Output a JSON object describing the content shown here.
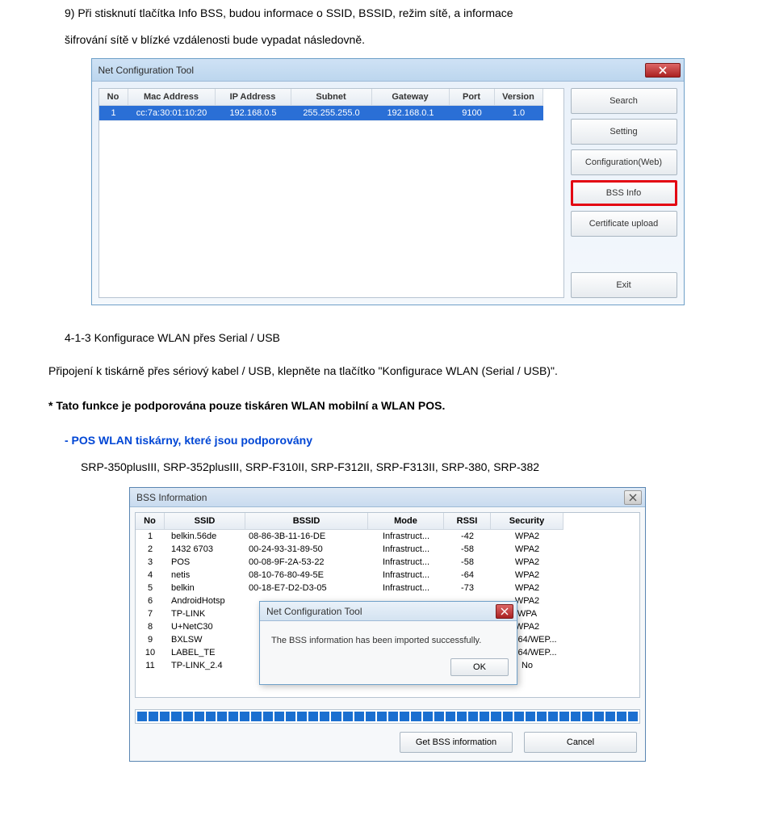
{
  "doc": {
    "step9_line1": "9) Při stisknutí tlačítka Info BSS, budou informace o SSID, BSSID, režim sítě, a informace",
    "step9_line2": "šifrování sítě v blízké vzdálenosti bude vypadat následovně.",
    "section_413": "4-1-3 Konfigurace WLAN přes Serial / USB",
    "para1": "Připojení k tiskárně přes sériový kabel / USB, klepněte na tlačítko \"Konfigurace WLAN (Serial / USB)\".",
    "para2": "* Tato funkce je podporována pouze tiskáren WLAN mobilní a WLAN POS.",
    "para3a": "- POS WLAN tiskárny, které jsou podporovány",
    "para3b": "SRP-350plusIII, SRP-352plusIII, SRP-F310II, SRP-F312II, SRP-F313II, SRP-380, SRP-382"
  },
  "win1": {
    "title": "Net Configuration Tool",
    "columns": [
      "No",
      "Mac Address",
      "IP Address",
      "Subnet",
      "Gateway",
      "Port",
      "Version"
    ],
    "row": [
      "1",
      "cc:7a:30:01:10:20",
      "192.168.0.5",
      "255.255.255.0",
      "192.168.0.1",
      "9100",
      "1.0"
    ],
    "buttons": {
      "search": "Search",
      "setting": "Setting",
      "configweb": "Configuration(Web)",
      "bssinfo": "BSS Info",
      "certupload": "Certificate upload",
      "exit": "Exit"
    }
  },
  "win2": {
    "title": "BSS Information",
    "columns": [
      "No",
      "SSID",
      "BSSID",
      "Mode",
      "RSSI",
      "Security"
    ],
    "rows": [
      [
        "1",
        "belkin.56de",
        "08-86-3B-11-16-DE",
        "Infrastruct...",
        "-42",
        "WPA2"
      ],
      [
        "2",
        "1432 6703",
        "00-24-93-31-89-50",
        "Infrastruct...",
        "-58",
        "WPA2"
      ],
      [
        "3",
        "POS",
        "00-08-9F-2A-53-22",
        "Infrastruct...",
        "-58",
        "WPA2"
      ],
      [
        "4",
        "netis",
        "08-10-76-80-49-5E",
        "Infrastruct...",
        "-64",
        "WPA2"
      ],
      [
        "5",
        "belkin",
        "00-18-E7-D2-D3-05",
        "Infrastruct...",
        "-73",
        "WPA2"
      ],
      [
        "6",
        "AndroidHotsp",
        "",
        "",
        "",
        "WPA2"
      ],
      [
        "7",
        "TP-LINK",
        "",
        "",
        "",
        "WPA"
      ],
      [
        "8",
        "U+NetC30",
        "",
        "",
        "",
        "WPA2"
      ],
      [
        "9",
        "BXLSW",
        "",
        "",
        "",
        "WEP64/WEP..."
      ],
      [
        "10",
        "LABEL_TE",
        "",
        "",
        "",
        "WEP64/WEP..."
      ],
      [
        "11",
        "TP-LINK_2.4",
        "",
        "",
        "",
        "No"
      ]
    ],
    "popup_title": "Net Configuration Tool",
    "popup_msg": "The BSS information has been imported successfully.",
    "ok": "OK",
    "getbss": "Get BSS information",
    "cancel": "Cancel"
  },
  "colors": {
    "highlight_border": "#e30613",
    "row_selected_bg": "#2a6fd6",
    "progress_fill": "#1b6fd0"
  }
}
